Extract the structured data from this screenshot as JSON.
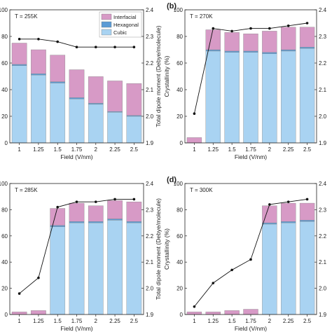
{
  "colors": {
    "cubic": "#a9d3f2",
    "hexagonal": "#5b9bd5",
    "interfacial": "#d79ac6",
    "dipole_line": "#111111"
  },
  "legend": [
    "Interfacial",
    "Hexagonal",
    "Cubic"
  ],
  "chart_data": [
    {
      "type": "bar",
      "panel_label": "",
      "temperature_label": "T = 255K",
      "categories": [
        "1",
        "1.25",
        "1.5",
        "1.75",
        "2",
        "2.25",
        "2.5"
      ],
      "xlabel": "Field (V/nm)",
      "ylabel": "",
      "y2label": "Total dipole moment (Debye/molecule)",
      "ylim": [
        0,
        100
      ],
      "y2lim": [
        1.9,
        2.4
      ],
      "yticks": [
        0,
        20,
        40,
        60,
        80,
        100
      ],
      "y2ticks": [
        1.9,
        2.0,
        2.1,
        2.2,
        2.3,
        2.4
      ],
      "series": [
        {
          "name": "Cubic",
          "values": [
            58,
            51,
            45,
            33,
            29,
            23,
            20
          ]
        },
        {
          "name": "Hexagonal",
          "values": [
            1,
            1,
            1,
            1,
            0.8,
            0.6,
            0.6
          ]
        },
        {
          "name": "Interfacial",
          "values": [
            16,
            18,
            20,
            21,
            20,
            23,
            24
          ]
        }
      ],
      "dipole": [
        2.29,
        2.29,
        2.28,
        2.26,
        2.26,
        2.26,
        2.26
      ]
    },
    {
      "type": "bar",
      "panel_label": "(b)",
      "temperature_label": "T = 270K",
      "categories": [
        "1",
        "1.25",
        "1.5",
        "1.75",
        "2",
        "2.25",
        "2.5"
      ],
      "xlabel": "Field (V/nm)",
      "ylabel": "Crystallinity (%)",
      "y2label": "",
      "ylim": [
        0,
        100
      ],
      "y2lim": [
        1.9,
        2.4
      ],
      "yticks": [
        0,
        20,
        40,
        60,
        80,
        100
      ],
      "y2ticks": [
        1.9,
        2.0,
        2.1,
        2.2,
        2.3,
        2.4
      ],
      "series": [
        {
          "name": "Cubic",
          "values": [
            0,
            69,
            68,
            68,
            67,
            69,
            71
          ]
        },
        {
          "name": "Hexagonal",
          "values": [
            0,
            1,
            1,
            1,
            1,
            1,
            1
          ]
        },
        {
          "name": "Interfacial",
          "values": [
            4,
            15,
            14,
            13,
            16,
            17,
            15
          ]
        }
      ],
      "dipole": [
        2.01,
        2.33,
        2.32,
        2.33,
        2.33,
        2.34,
        2.35
      ]
    },
    {
      "type": "bar",
      "panel_label": "",
      "temperature_label": "T = 285K",
      "categories": [
        "1",
        "1.25",
        "1.5",
        "1.75",
        "2",
        "2.25",
        "2.5"
      ],
      "xlabel": "Field (V/nm)",
      "ylabel": "",
      "y2label": "Total dipole moment (Debye/molecule)",
      "ylim": [
        0,
        100
      ],
      "y2lim": [
        1.9,
        2.4
      ],
      "yticks": [
        0,
        20,
        40,
        60,
        80,
        100
      ],
      "y2ticks": [
        1.9,
        2.0,
        2.1,
        2.2,
        2.3,
        2.4
      ],
      "series": [
        {
          "name": "Cubic",
          "values": [
            0,
            0,
            67,
            70,
            70,
            72,
            70
          ]
        },
        {
          "name": "Hexagonal",
          "values": [
            0,
            0,
            1,
            1,
            1,
            1,
            1
          ]
        },
        {
          "name": "Interfacial",
          "values": [
            2,
            3,
            13,
            14,
            12,
            14,
            15
          ]
        }
      ],
      "dipole": [
        1.98,
        2.04,
        2.31,
        2.33,
        2.33,
        2.34,
        2.34
      ]
    },
    {
      "type": "bar",
      "panel_label": "(d)",
      "temperature_label": "T = 300K",
      "categories": [
        "1",
        "1.25",
        "1.5",
        "1.75",
        "2",
        "2.25",
        "2.5"
      ],
      "xlabel": "Field (V/nm)",
      "ylabel": "Crystallinity (%)",
      "y2label": "",
      "ylim": [
        0,
        100
      ],
      "y2lim": [
        1.9,
        2.4
      ],
      "yticks": [
        0,
        20,
        40,
        60,
        80,
        100
      ],
      "y2ticks": [
        1.9,
        2.0,
        2.1,
        2.2,
        2.3,
        2.4
      ],
      "series": [
        {
          "name": "Cubic",
          "values": [
            0,
            0,
            0,
            0,
            69,
            70,
            71
          ]
        },
        {
          "name": "Hexagonal",
          "values": [
            0,
            0,
            0,
            0,
            1,
            1,
            1
          ]
        },
        {
          "name": "Interfacial",
          "values": [
            2,
            2,
            3,
            4,
            13,
            14,
            13
          ]
        }
      ],
      "dipole": [
        1.93,
        2.02,
        2.07,
        2.11,
        2.32,
        2.33,
        2.34
      ]
    }
  ]
}
